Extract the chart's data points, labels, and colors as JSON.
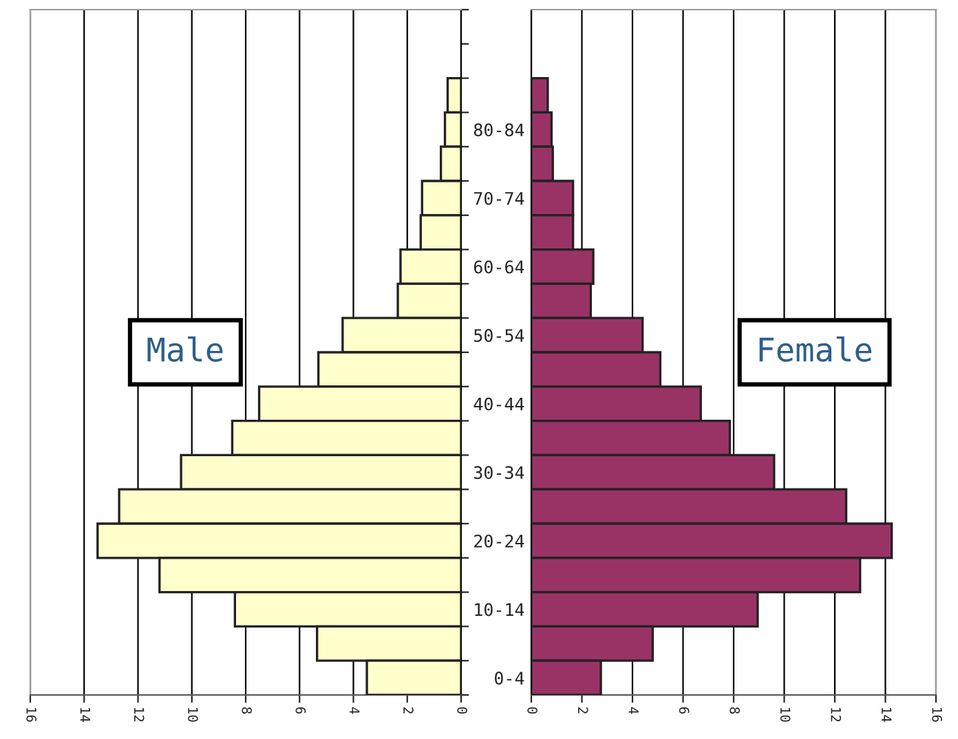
{
  "chart_data": [
    {
      "type": "bar",
      "orientation": "horizontal",
      "values": [
        null,
        null,
        0.5,
        0.6,
        0.75,
        1.45,
        1.5,
        2.25,
        2.35,
        4.4,
        5.3,
        7.5,
        8.5,
        10.4,
        12.7,
        13.5,
        11.2,
        8.4,
        5.35,
        3.5
      ],
      "color": "#ffffcc",
      "xlim": [
        16,
        0
      ],
      "xticks": [
        0,
        2,
        4,
        6,
        8,
        10,
        12,
        14,
        16
      ],
      "grid": "x",
      "annotations": [
        "Male"
      ]
    },
    {
      "type": "bar",
      "orientation": "horizontal",
      "categories": [
        null,
        null,
        null,
        "80-84",
        null,
        "70-74",
        null,
        "60-64",
        null,
        "50-54",
        null,
        "40-44",
        null,
        "30-34",
        null,
        "20-24",
        null,
        "10-14",
        null,
        "0-4"
      ],
      "values": [
        null,
        null,
        0.65,
        0.8,
        0.85,
        1.65,
        1.65,
        2.45,
        2.35,
        4.4,
        5.1,
        6.7,
        7.85,
        9.6,
        12.45,
        14.25,
        13.0,
        8.95,
        4.8,
        2.75
      ],
      "color": "#993366",
      "xlim": [
        0,
        16
      ],
      "xticks": [
        0,
        2,
        4,
        6,
        8,
        10,
        12,
        14,
        16
      ],
      "grid": "x",
      "annotations": [
        "Female"
      ]
    }
  ]
}
